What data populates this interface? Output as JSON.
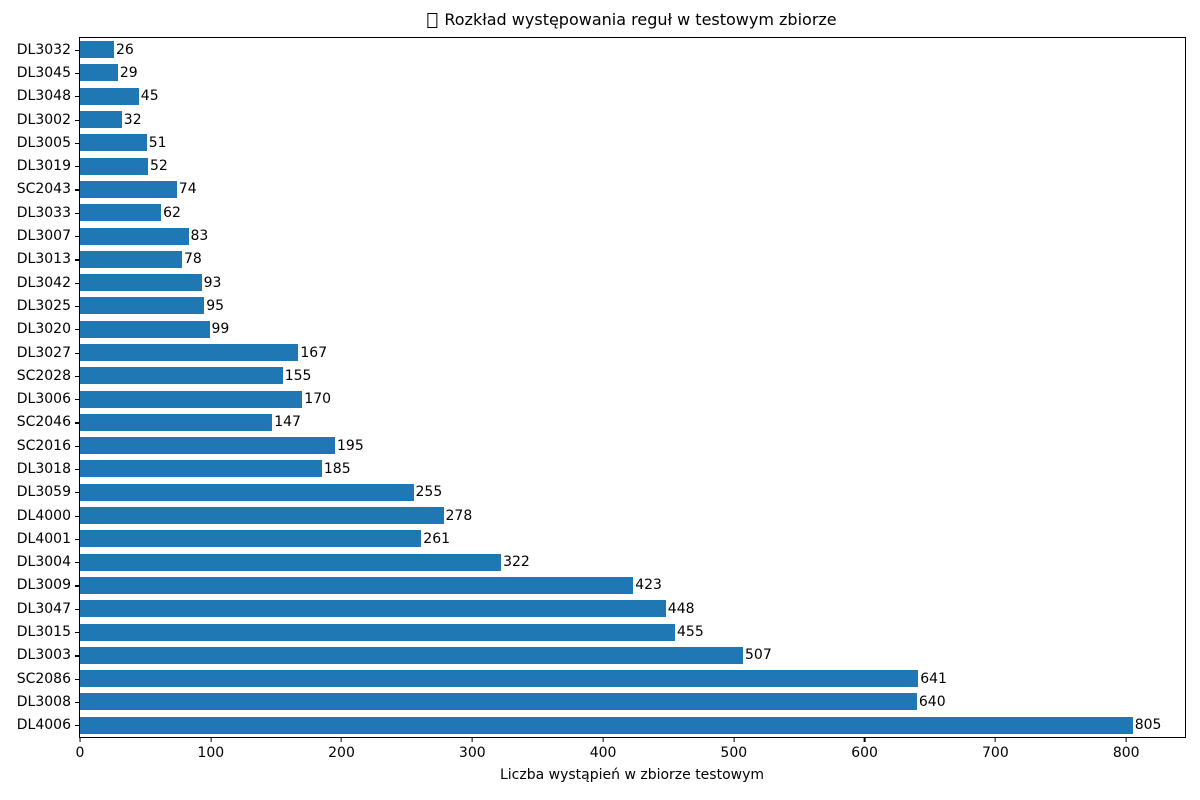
{
  "chart_data": {
    "type": "bar",
    "orientation": "horizontal",
    "title": "Rozkład występowania reguł w testowym zbiorze",
    "title_icon": "missing-glyph-box",
    "xlabel": "Liczba wystąpień w zbiorze testowym",
    "ylabel": "",
    "xlim": [
      0,
      845
    ],
    "xticks": [
      0,
      100,
      200,
      300,
      400,
      500,
      600,
      700,
      800
    ],
    "grid": false,
    "legend": false,
    "bar_color": "#1f77b4",
    "text_color": "#000000",
    "value_labels_shown": true,
    "categories": [
      "DL3032",
      "DL3045",
      "DL3048",
      "DL3002",
      "DL3005",
      "DL3019",
      "SC2043",
      "DL3033",
      "DL3007",
      "DL3013",
      "DL3042",
      "DL3025",
      "DL3020",
      "DL3027",
      "SC2028",
      "DL3006",
      "SC2046",
      "SC2016",
      "DL3018",
      "DL3059",
      "DL4000",
      "DL4001",
      "DL3004",
      "DL3009",
      "DL3047",
      "DL3015",
      "DL3003",
      "SC2086",
      "DL3008",
      "DL4006"
    ],
    "values": [
      26,
      29,
      45,
      32,
      51,
      52,
      74,
      62,
      83,
      78,
      93,
      95,
      99,
      167,
      155,
      170,
      147,
      195,
      185,
      255,
      278,
      261,
      322,
      423,
      448,
      455,
      507,
      641,
      640,
      805
    ]
  }
}
